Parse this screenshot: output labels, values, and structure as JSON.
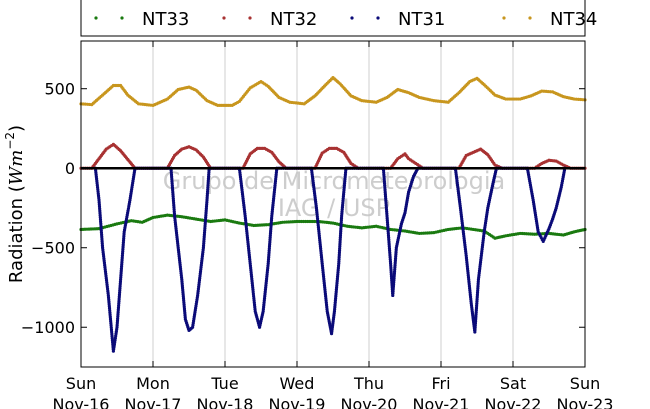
{
  "chart_data": {
    "type": "scatter",
    "title": "",
    "xlabel": "",
    "ylabel_text": "Radiation (",
    "ylabel_unit_base": "Wm",
    "ylabel_unit_exp": "−2",
    "ylabel_close": ")",
    "ylim": [
      -1250,
      800
    ],
    "yticks": [
      500,
      0,
      -500,
      -1000
    ],
    "ytick_labels": [
      "500",
      "0",
      "−500",
      "−1000"
    ],
    "xlim_days": [
      0,
      7
    ],
    "xtick_labels": [
      {
        "day": "Sun",
        "date": "Nov-16"
      },
      {
        "day": "Mon",
        "date": "Nov-17"
      },
      {
        "day": "Tue",
        "date": "Nov-18"
      },
      {
        "day": "Wed",
        "date": "Nov-19"
      },
      {
        "day": "Thu",
        "date": "Nov-20"
      },
      {
        "day": "Fri",
        "date": "Nov-21"
      },
      {
        "day": "Sat",
        "date": "Nov-22"
      },
      {
        "day": "Sun",
        "date": "Nov-23"
      }
    ],
    "grid": "vertical",
    "zero_line": true,
    "legend_position": "top (outside)",
    "watermark": [
      "Grupo de Micrometeorologia",
      "IAG / USP"
    ],
    "series": [
      {
        "name": "NT33",
        "color": "#1a7a10",
        "values": [
          [
            0.0,
            -385
          ],
          [
            0.25,
            -380
          ],
          [
            0.5,
            -350
          ],
          [
            0.7,
            -330
          ],
          [
            0.85,
            -340
          ],
          [
            1.0,
            -310
          ],
          [
            1.2,
            -295
          ],
          [
            1.4,
            -305
          ],
          [
            1.6,
            -320
          ],
          [
            1.8,
            -335
          ],
          [
            2.0,
            -325
          ],
          [
            2.2,
            -345
          ],
          [
            2.4,
            -360
          ],
          [
            2.6,
            -355
          ],
          [
            2.8,
            -340
          ],
          [
            3.0,
            -335
          ],
          [
            3.3,
            -335
          ],
          [
            3.5,
            -345
          ],
          [
            3.7,
            -365
          ],
          [
            3.9,
            -375
          ],
          [
            4.1,
            -365
          ],
          [
            4.3,
            -385
          ],
          [
            4.5,
            -395
          ],
          [
            4.7,
            -410
          ],
          [
            4.9,
            -405
          ],
          [
            5.1,
            -385
          ],
          [
            5.3,
            -375
          ],
          [
            5.45,
            -385
          ],
          [
            5.6,
            -395
          ],
          [
            5.75,
            -440
          ],
          [
            5.9,
            -425
          ],
          [
            6.1,
            -410
          ],
          [
            6.3,
            -415
          ],
          [
            6.5,
            -410
          ],
          [
            6.7,
            -420
          ],
          [
            6.85,
            -400
          ],
          [
            7.0,
            -385
          ]
        ]
      },
      {
        "name": "NT32",
        "color": "#a83232",
        "values": [
          [
            0.0,
            0
          ],
          [
            0.15,
            0
          ],
          [
            0.25,
            60
          ],
          [
            0.35,
            120
          ],
          [
            0.45,
            150
          ],
          [
            0.55,
            110
          ],
          [
            0.65,
            55
          ],
          [
            0.75,
            0
          ],
          [
            1.0,
            0
          ],
          [
            1.2,
            0
          ],
          [
            1.3,
            80
          ],
          [
            1.4,
            120
          ],
          [
            1.5,
            135
          ],
          [
            1.6,
            115
          ],
          [
            1.7,
            70
          ],
          [
            1.8,
            0
          ],
          [
            2.0,
            0
          ],
          [
            2.25,
            0
          ],
          [
            2.35,
            90
          ],
          [
            2.45,
            125
          ],
          [
            2.55,
            125
          ],
          [
            2.65,
            100
          ],
          [
            2.75,
            40
          ],
          [
            2.85,
            0
          ],
          [
            3.0,
            0
          ],
          [
            3.25,
            0
          ],
          [
            3.35,
            95
          ],
          [
            3.45,
            125
          ],
          [
            3.55,
            125
          ],
          [
            3.65,
            100
          ],
          [
            3.75,
            30
          ],
          [
            3.85,
            0
          ],
          [
            4.0,
            0
          ],
          [
            4.3,
            0
          ],
          [
            4.4,
            60
          ],
          [
            4.5,
            90
          ],
          [
            4.55,
            60
          ],
          [
            4.65,
            30
          ],
          [
            4.75,
            0
          ],
          [
            5.0,
            0
          ],
          [
            5.25,
            0
          ],
          [
            5.35,
            80
          ],
          [
            5.45,
            100
          ],
          [
            5.55,
            120
          ],
          [
            5.65,
            85
          ],
          [
            5.75,
            20
          ],
          [
            5.85,
            0
          ],
          [
            6.0,
            0
          ],
          [
            6.3,
            0
          ],
          [
            6.4,
            30
          ],
          [
            6.5,
            50
          ],
          [
            6.6,
            45
          ],
          [
            6.7,
            20
          ],
          [
            6.8,
            0
          ],
          [
            7.0,
            0
          ]
        ]
      },
      {
        "name": "NT31",
        "color": "#0a0a78",
        "values": [
          [
            0.2,
            0
          ],
          [
            0.25,
            -200
          ],
          [
            0.3,
            -500
          ],
          [
            0.38,
            -800
          ],
          [
            0.45,
            -1150
          ],
          [
            0.5,
            -1000
          ],
          [
            0.55,
            -700
          ],
          [
            0.6,
            -400
          ],
          [
            0.68,
            -200
          ],
          [
            0.75,
            0
          ],
          [
            1.25,
            0
          ],
          [
            1.3,
            -300
          ],
          [
            1.4,
            -700
          ],
          [
            1.45,
            -950
          ],
          [
            1.5,
            -1020
          ],
          [
            1.55,
            -1000
          ],
          [
            1.62,
            -800
          ],
          [
            1.7,
            -500
          ],
          [
            1.75,
            -200
          ],
          [
            1.78,
            0
          ],
          [
            2.2,
            0
          ],
          [
            2.28,
            -300
          ],
          [
            2.35,
            -600
          ],
          [
            2.42,
            -900
          ],
          [
            2.48,
            -1000
          ],
          [
            2.53,
            -900
          ],
          [
            2.6,
            -600
          ],
          [
            2.65,
            -300
          ],
          [
            2.72,
            0
          ],
          [
            3.2,
            0
          ],
          [
            3.27,
            -250
          ],
          [
            3.35,
            -600
          ],
          [
            3.42,
            -900
          ],
          [
            3.48,
            -1040
          ],
          [
            3.52,
            -900
          ],
          [
            3.58,
            -600
          ],
          [
            3.62,
            -300
          ],
          [
            3.68,
            0
          ],
          [
            4.2,
            0
          ],
          [
            4.25,
            -300
          ],
          [
            4.3,
            -600
          ],
          [
            4.33,
            -800
          ],
          [
            4.38,
            -500
          ],
          [
            4.45,
            -350
          ],
          [
            4.5,
            -280
          ],
          [
            4.55,
            -150
          ],
          [
            4.62,
            -50
          ],
          [
            4.68,
            0
          ],
          [
            5.2,
            0
          ],
          [
            5.27,
            -250
          ],
          [
            5.35,
            -550
          ],
          [
            5.42,
            -850
          ],
          [
            5.47,
            -1030
          ],
          [
            5.52,
            -700
          ],
          [
            5.6,
            -400
          ],
          [
            5.65,
            -250
          ],
          [
            5.72,
            -100
          ],
          [
            5.77,
            0
          ],
          [
            6.2,
            0
          ],
          [
            6.28,
            -200
          ],
          [
            6.35,
            -400
          ],
          [
            6.42,
            -460
          ],
          [
            6.5,
            -380
          ],
          [
            6.55,
            -320
          ],
          [
            6.6,
            -250
          ],
          [
            6.67,
            -120
          ],
          [
            6.72,
            0
          ]
        ]
      },
      {
        "name": "NT34",
        "color": "#c8961e",
        "values": [
          [
            0.0,
            405
          ],
          [
            0.15,
            400
          ],
          [
            0.3,
            460
          ],
          [
            0.45,
            520
          ],
          [
            0.55,
            520
          ],
          [
            0.65,
            460
          ],
          [
            0.8,
            405
          ],
          [
            1.0,
            395
          ],
          [
            1.2,
            435
          ],
          [
            1.35,
            495
          ],
          [
            1.5,
            510
          ],
          [
            1.6,
            490
          ],
          [
            1.75,
            425
          ],
          [
            1.9,
            395
          ],
          [
            2.1,
            395
          ],
          [
            2.2,
            420
          ],
          [
            2.35,
            505
          ],
          [
            2.5,
            545
          ],
          [
            2.6,
            515
          ],
          [
            2.75,
            445
          ],
          [
            2.9,
            415
          ],
          [
            3.1,
            405
          ],
          [
            3.25,
            455
          ],
          [
            3.4,
            525
          ],
          [
            3.5,
            570
          ],
          [
            3.6,
            530
          ],
          [
            3.75,
            455
          ],
          [
            3.9,
            425
          ],
          [
            4.1,
            415
          ],
          [
            4.25,
            445
          ],
          [
            4.4,
            495
          ],
          [
            4.55,
            475
          ],
          [
            4.7,
            445
          ],
          [
            4.9,
            425
          ],
          [
            5.1,
            415
          ],
          [
            5.25,
            475
          ],
          [
            5.4,
            545
          ],
          [
            5.5,
            565
          ],
          [
            5.6,
            525
          ],
          [
            5.75,
            460
          ],
          [
            5.9,
            435
          ],
          [
            6.1,
            435
          ],
          [
            6.25,
            455
          ],
          [
            6.4,
            485
          ],
          [
            6.55,
            480
          ],
          [
            6.7,
            450
          ],
          [
            6.85,
            435
          ],
          [
            7.0,
            430
          ]
        ]
      }
    ]
  }
}
